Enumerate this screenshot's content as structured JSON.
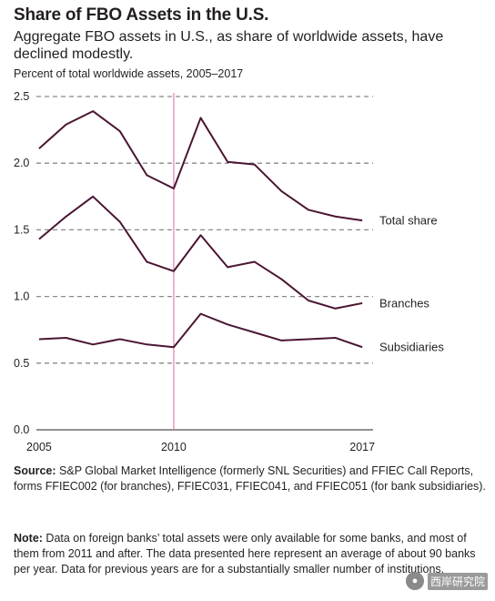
{
  "header": {
    "title": "Share of FBO Assets in the U.S.",
    "subtitle": "Aggregate FBO assets in U.S., as share of worldwide assets, have declined modestly.",
    "unit_label": "Percent of total worldwide assets, 2005–2017"
  },
  "chart_data": {
    "type": "line",
    "x": [
      2005,
      2006,
      2007,
      2008,
      2009,
      2010,
      2011,
      2012,
      2013,
      2014,
      2015,
      2016,
      2017
    ],
    "xlim": [
      2004.9,
      2017.4
    ],
    "ylim": [
      0,
      2.5
    ],
    "yticks": [
      "0.0",
      "0.5",
      "1.0",
      "1.5",
      "2.0",
      "2.5"
    ],
    "xticks": [
      "2005",
      "2010",
      "2017"
    ],
    "grid": "dashed horizontal",
    "vertical_marker_x": 2010,
    "series": [
      {
        "name": "Total share",
        "values": [
          2.11,
          2.29,
          2.39,
          2.24,
          1.91,
          1.81,
          2.34,
          2.01,
          1.99,
          1.79,
          1.65,
          1.6,
          1.57
        ]
      },
      {
        "name": "Branches",
        "values": [
          1.43,
          1.6,
          1.75,
          1.56,
          1.26,
          1.19,
          1.46,
          1.22,
          1.26,
          1.13,
          0.97,
          0.91,
          0.95
        ]
      },
      {
        "name": "Subsidiaries",
        "values": [
          0.68,
          0.69,
          0.64,
          0.68,
          0.64,
          0.62,
          0.87,
          0.79,
          0.73,
          0.67,
          0.68,
          0.69,
          0.62
        ]
      }
    ],
    "colors": {
      "line": "#4b1533",
      "marker": "#e07fb3",
      "grid": "#8a8a8a"
    }
  },
  "source": {
    "label": "Source:",
    "text": " S&P Global Market Intelligence (formerly SNL Securities) and FFIEC Call Reports, forms FFIEC002 (for branches), FFIEC031, FFIEC041, and FFIEC051 (for bank subsidiaries)."
  },
  "note": {
    "label": "Note:",
    "text": " Data on foreign banks’ total assets were only available for some banks, and most of them from 2011 and after. The data presented here represent an average of about 90 banks per year. Data for previous years are for a substantially smaller number of institutions."
  },
  "watermark": {
    "text": "西岸研究院"
  }
}
